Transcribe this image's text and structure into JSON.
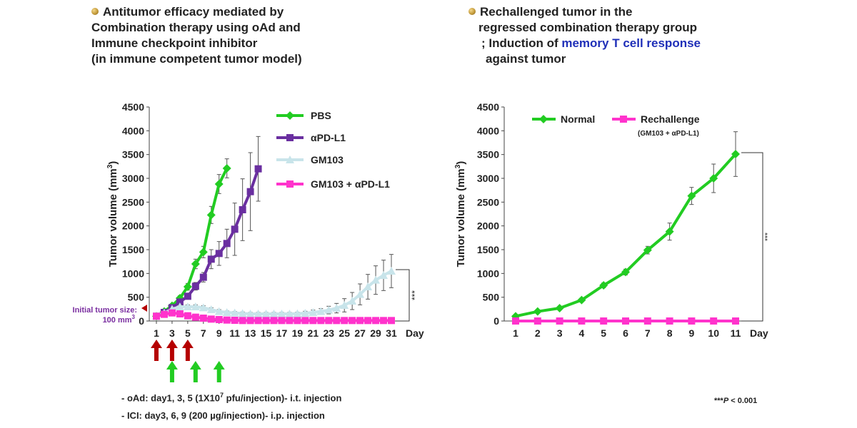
{
  "left_header": {
    "line1": "Antitumor efficacy mediated by",
    "line2": "Combination therapy using oAd and",
    "line3": "Immune checkpoint inhibitor",
    "line4": "(in immune competent tumor model)"
  },
  "right_header": {
    "line1": "Rechallenged tumor in the",
    "line2": "regressed combination therapy group",
    "line3_prefix": "; Induction of ",
    "line3_highlight": "memory T cell response",
    "line4": "against tumor"
  },
  "colors": {
    "pbs": "#22cc22",
    "apdl1": "#6a2fa0",
    "gm103": "#c8e4ea",
    "combo": "#ff33cc",
    "highlight_text": "#1f2fb8",
    "initial_tumor_text": "#7a2ea0",
    "oad_arrow": "#b50000",
    "ici_arrow": "#22cc22"
  },
  "chart_data": [
    {
      "type": "line",
      "ylabel_prefix": "Tumor volume (mm",
      "ylabel_sup": "3",
      "ylabel_suffix": ")",
      "xlabel": "Day",
      "ylim": [
        0,
        4500
      ],
      "yticks": [
        "0",
        "500",
        "1000",
        "1500",
        "2000",
        "2500",
        "3000",
        "3500",
        "4000",
        "4500"
      ],
      "xlim": [
        1,
        31
      ],
      "xticks": [
        "1",
        "3",
        "5",
        "7",
        "9",
        "11",
        "13",
        "15",
        "17",
        "19",
        "21",
        "23",
        "25",
        "27",
        "29",
        "31"
      ],
      "legend_position": "top-right",
      "significance": "***",
      "initial_tumor_label_line1": "Initial tumor size:",
      "initial_tumor_label_line2": "100 mm",
      "initial_tumor_label_sup": "3",
      "oad_days": [
        1,
        3,
        5
      ],
      "ici_days": [
        3,
        6,
        9
      ],
      "series": [
        {
          "name": "PBS",
          "marker": "diamond",
          "x": [
            1,
            2,
            3,
            4,
            5,
            6,
            7,
            8,
            9,
            10
          ],
          "y": [
            100,
            200,
            320,
            480,
            720,
            1200,
            1450,
            2230,
            2880,
            3210
          ],
          "err": [
            10,
            20,
            30,
            50,
            70,
            100,
            120,
            180,
            200,
            200
          ]
        },
        {
          "name": "αPD-L1",
          "marker": "square",
          "x": [
            1,
            2,
            3,
            4,
            5,
            6,
            7,
            8,
            9,
            10,
            11,
            12,
            13,
            14
          ],
          "y": [
            100,
            180,
            280,
            400,
            520,
            730,
            920,
            1300,
            1420,
            1630,
            1930,
            2340,
            2720,
            3200
          ],
          "err": [
            10,
            20,
            30,
            40,
            50,
            80,
            100,
            200,
            250,
            300,
            550,
            650,
            820,
            680
          ]
        },
        {
          "name": "GM103",
          "marker": "triangle",
          "x": [
            1,
            2,
            3,
            4,
            5,
            6,
            7,
            8,
            9,
            10,
            11,
            12,
            13,
            14,
            15,
            16,
            17,
            18,
            19,
            20,
            21,
            22,
            23,
            24,
            25,
            26,
            27,
            28,
            29,
            30,
            31
          ],
          "y": [
            100,
            170,
            250,
            300,
            300,
            300,
            280,
            240,
            200,
            180,
            170,
            160,
            150,
            150,
            150,
            150,
            150,
            150,
            155,
            165,
            180,
            200,
            230,
            270,
            330,
            420,
            560,
            720,
            860,
            960,
            1050
          ],
          "err": [
            10,
            20,
            30,
            40,
            40,
            40,
            40,
            40,
            40,
            30,
            30,
            30,
            30,
            30,
            30,
            30,
            30,
            30,
            30,
            40,
            50,
            60,
            80,
            100,
            140,
            180,
            220,
            260,
            300,
            320,
            350
          ]
        },
        {
          "name": "GM103 + αPD-L1",
          "marker": "square",
          "x": [
            1,
            2,
            3,
            4,
            5,
            6,
            7,
            8,
            9,
            10,
            11,
            12,
            13,
            14,
            15,
            16,
            17,
            18,
            19,
            20,
            21,
            22,
            23,
            24,
            25,
            26,
            27,
            28,
            29,
            30,
            31
          ],
          "y": [
            100,
            140,
            170,
            150,
            110,
            80,
            60,
            40,
            30,
            20,
            15,
            10,
            10,
            10,
            10,
            10,
            10,
            10,
            10,
            10,
            10,
            10,
            10,
            10,
            10,
            10,
            10,
            10,
            10,
            10,
            10
          ],
          "err": [
            10,
            20,
            20,
            20,
            20,
            20,
            15,
            10,
            10,
            8,
            5,
            5,
            5,
            5,
            5,
            5,
            5,
            5,
            5,
            5,
            5,
            5,
            5,
            5,
            5,
            5,
            5,
            5,
            5,
            5,
            5
          ]
        }
      ]
    },
    {
      "type": "line",
      "ylabel_prefix": "Tumor volume (mm",
      "ylabel_sup": "3",
      "ylabel_suffix": ")",
      "xlabel": "Day",
      "ylim": [
        0,
        4500
      ],
      "yticks": [
        "0",
        "500",
        "1000",
        "1500",
        "2000",
        "2500",
        "3000",
        "3500",
        "4000",
        "4500"
      ],
      "xlim": [
        1,
        11
      ],
      "xticks": [
        "1",
        "2",
        "3",
        "4",
        "5",
        "6",
        "7",
        "8",
        "9",
        "10",
        "11"
      ],
      "legend_position": "top",
      "significance": "***",
      "legend_subtitle": "(GM103 + αPD-L1)",
      "series": [
        {
          "name": "Normal",
          "marker": "diamond",
          "x": [
            1,
            2,
            3,
            4,
            5,
            6,
            7,
            8,
            9,
            10,
            11
          ],
          "y": [
            100,
            200,
            270,
            440,
            750,
            1030,
            1490,
            1880,
            2630,
            3000,
            3510
          ],
          "err": [
            10,
            20,
            30,
            40,
            50,
            60,
            80,
            180,
            180,
            300,
            470
          ]
        },
        {
          "name": "Rechallenge",
          "marker": "square",
          "x": [
            1,
            2,
            3,
            4,
            5,
            6,
            7,
            8,
            9,
            10,
            11
          ],
          "y": [
            0,
            0,
            0,
            0,
            0,
            0,
            0,
            0,
            0,
            0,
            0
          ],
          "err": [
            0,
            0,
            0,
            0,
            0,
            0,
            0,
            0,
            0,
            0,
            0
          ]
        }
      ]
    }
  ],
  "notes": {
    "oad_prefix": "- oAd: day1, 3, 5 (1X10",
    "oad_sup": "7",
    "oad_suffix": " pfu/injection)- i.t. injection",
    "ici": "- ICI: day3, 6, 9 (200 µg/injection)- i.p. injection",
    "pvalue_stars": "***",
    "pvalue_p": "P",
    "pvalue_rest": " < 0.001"
  }
}
